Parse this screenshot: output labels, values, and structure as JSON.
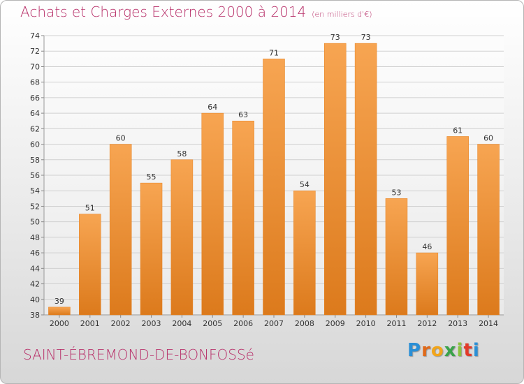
{
  "header": {
    "title": "Achats et Charges Externes 2000 à 2014",
    "subtitle": "(en milliers d'€)"
  },
  "footer": {
    "commune": "SAINT-ÉBREMOND-DE-BONFOSSé",
    "logo_letters": [
      "P",
      "r",
      "o",
      "x",
      "i",
      "t",
      "i"
    ]
  },
  "chart_data": {
    "type": "bar",
    "title": "Achats et Charges Externes 2000 à 2014",
    "subtitle": "(en milliers d'€)",
    "categories": [
      "2000",
      "2001",
      "2002",
      "2003",
      "2004",
      "2005",
      "2006",
      "2007",
      "2008",
      "2009",
      "2010",
      "2011",
      "2012",
      "2013",
      "2014"
    ],
    "values": [
      39,
      51,
      60,
      55,
      58,
      64,
      63,
      71,
      54,
      73,
      73,
      53,
      46,
      61,
      60
    ],
    "ylim": [
      38,
      74
    ],
    "yticks": [
      38,
      40,
      42,
      44,
      46,
      48,
      50,
      52,
      54,
      56,
      58,
      60,
      62,
      64,
      66,
      68,
      70,
      72,
      74
    ],
    "grid": true,
    "bar_color": "#f0922e"
  }
}
